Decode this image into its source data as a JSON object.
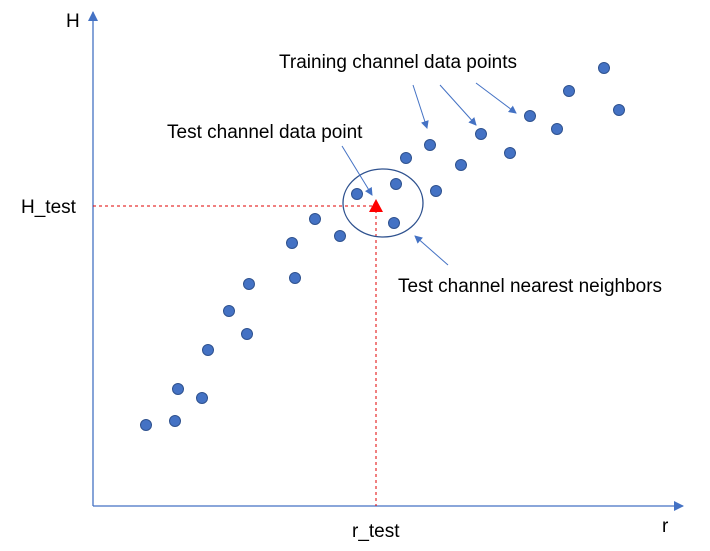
{
  "axes": {
    "y_label": "H",
    "x_label": "r"
  },
  "markers": {
    "h_test_label": "H_test",
    "r_test_label": "r_test"
  },
  "annotations": {
    "training": "Training channel data points",
    "test_point": "Test channel data point",
    "neighbors": "Test channel nearest neighbors"
  },
  "colors": {
    "axis": "#4472c4",
    "point_fill": "#4472c4",
    "point_stroke": "#2f528f",
    "test_point": "#ff0000",
    "guide_line": "#e00000"
  },
  "icons": {
    "test_point": "triangle-up"
  }
}
